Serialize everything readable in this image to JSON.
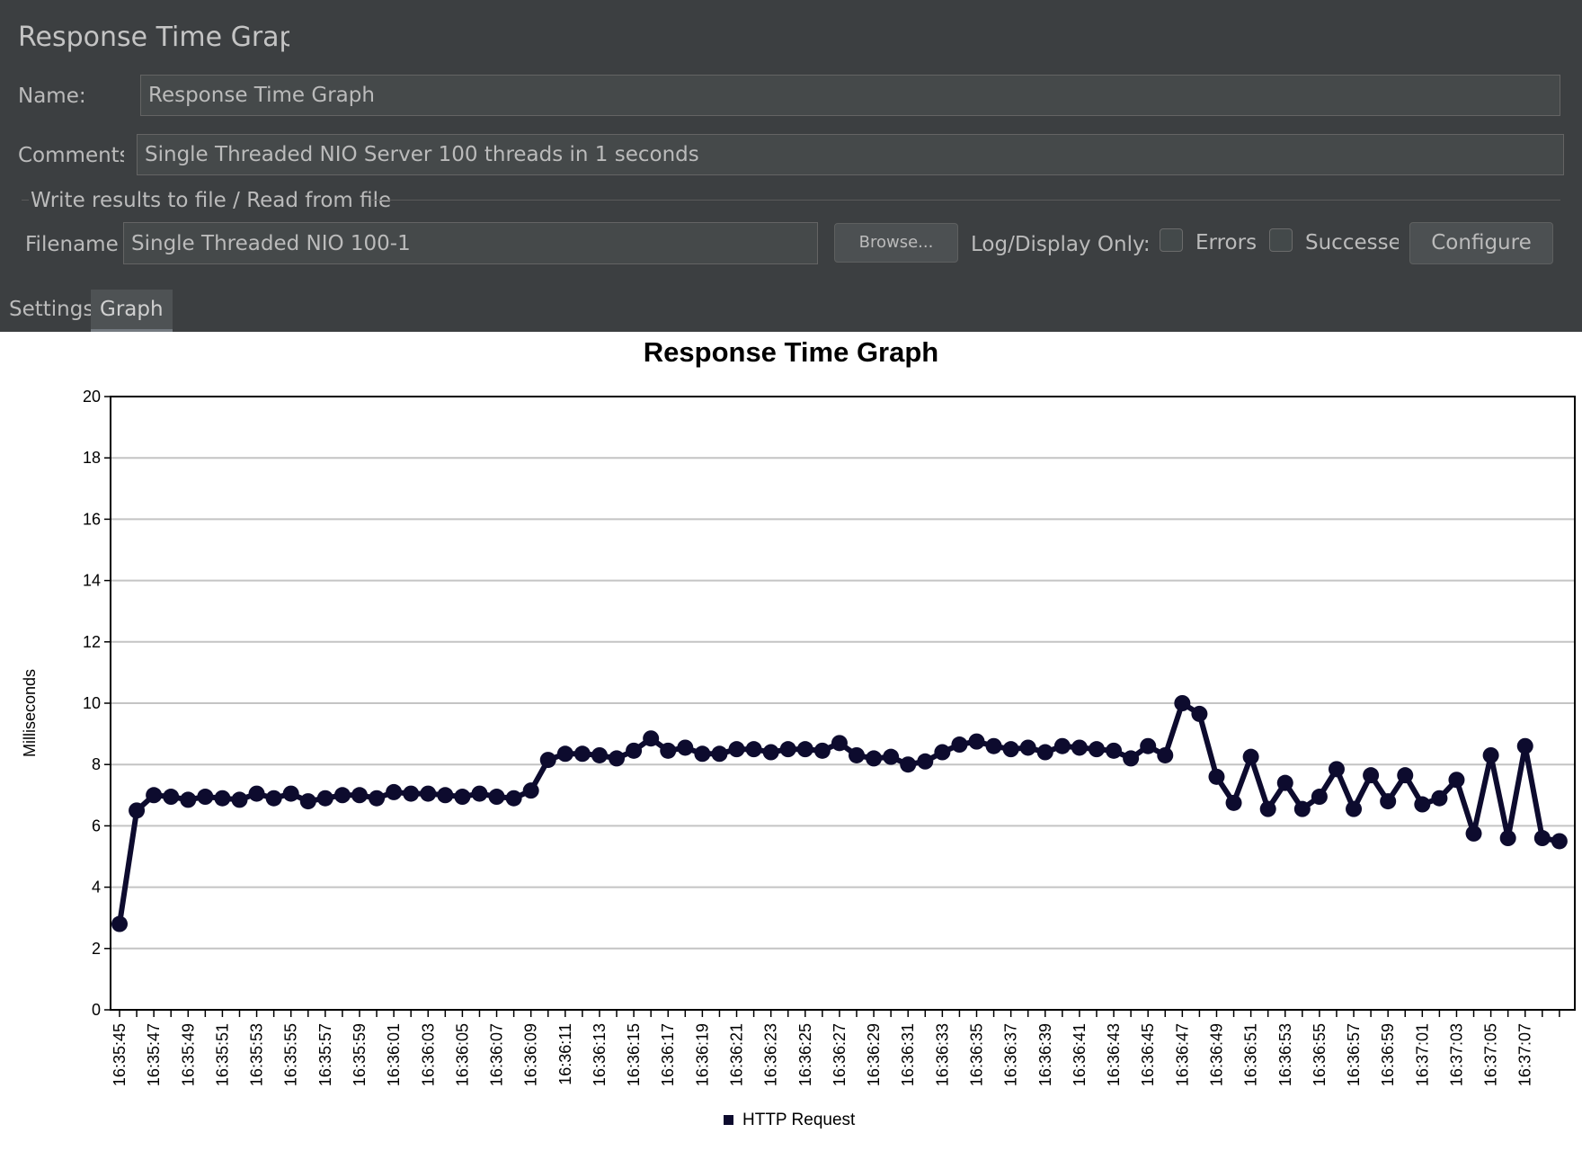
{
  "panel": {
    "title": "Response Time Graph",
    "name_label": "Name:",
    "name_value": "Response Time Graph",
    "comments_label": "Comments:",
    "comments_value": "Single Threaded NIO Server 100 threads in 1 seconds",
    "file_section_label": "Write results to file / Read from file",
    "filename_label": "Filename",
    "filename_value": "Single Threaded NIO 100-1",
    "browse_label": "Browse...",
    "log_display_label": "Log/Display Only:",
    "errors_label": "Errors",
    "successes_label": "Successes",
    "configure_label": "Configure",
    "errors_checked": false,
    "successes_checked": false
  },
  "tabs": [
    {
      "label": "Settings",
      "active": false
    },
    {
      "label": "Graph",
      "active": true
    }
  ],
  "chart_data": {
    "type": "line",
    "title": "Response Time Graph",
    "xlabel": "",
    "ylabel": "Milliseconds",
    "ylim": [
      0,
      20
    ],
    "yticks": [
      0,
      2,
      4,
      6,
      8,
      10,
      12,
      14,
      16,
      18,
      20
    ],
    "grid": true,
    "legend_position": "bottom",
    "x": [
      "16:35:45",
      "16:35:46",
      "16:35:47",
      "16:35:48",
      "16:35:49",
      "16:35:50",
      "16:35:51",
      "16:35:52",
      "16:35:53",
      "16:35:54",
      "16:35:55",
      "16:35:56",
      "16:35:57",
      "16:35:58",
      "16:35:59",
      "16:36:00",
      "16:36:01",
      "16:36:02",
      "16:36:03",
      "16:36:04",
      "16:36:05",
      "16:36:06",
      "16:36:07",
      "16:36:08",
      "16:36:09",
      "16:36:10",
      "16:36:11",
      "16:36:12",
      "16:36:13",
      "16:36:14",
      "16:36:15",
      "16:36:16",
      "16:36:17",
      "16:36:18",
      "16:36:19",
      "16:36:20",
      "16:36:21",
      "16:36:22",
      "16:36:23",
      "16:36:24",
      "16:36:25",
      "16:36:26",
      "16:36:27",
      "16:36:28",
      "16:36:29",
      "16:36:30",
      "16:36:31",
      "16:36:32",
      "16:36:33",
      "16:36:34",
      "16:36:35",
      "16:36:36",
      "16:36:37",
      "16:36:38",
      "16:36:39",
      "16:36:40",
      "16:36:41",
      "16:36:42",
      "16:36:43",
      "16:36:44",
      "16:36:45",
      "16:36:46",
      "16:36:47",
      "16:36:48",
      "16:36:49",
      "16:36:50",
      "16:36:51",
      "16:36:52",
      "16:36:53",
      "16:36:54",
      "16:36:55",
      "16:36:56",
      "16:36:57",
      "16:36:58",
      "16:36:59",
      "16:37:00",
      "16:37:01",
      "16:37:02",
      "16:37:03",
      "16:37:04",
      "16:37:05",
      "16:37:06",
      "16:37:07",
      "16:37:08",
      "16:37:09"
    ],
    "xtick_labels": [
      "16:35:45",
      "16:35:47",
      "16:35:49",
      "16:35:51",
      "16:35:53",
      "16:35:55",
      "16:35:57",
      "16:35:59",
      "16:36:01",
      "16:36:03",
      "16:36:05",
      "16:36:07",
      "16:36:09",
      "16:36:11",
      "16:36:13",
      "16:36:15",
      "16:36:17",
      "16:36:19",
      "16:36:21",
      "16:36:23",
      "16:36:25",
      "16:36:27",
      "16:36:29",
      "16:36:31",
      "16:36:33",
      "16:36:35",
      "16:36:37",
      "16:36:39",
      "16:36:41",
      "16:36:43",
      "16:36:45",
      "16:36:47",
      "16:36:49",
      "16:36:51",
      "16:36:53",
      "16:36:55",
      "16:36:57",
      "16:36:59",
      "16:37:01",
      "16:37:03",
      "16:37:05",
      "16:37:07"
    ],
    "series": [
      {
        "name": "HTTP Request",
        "color": "#0d0b2e",
        "values": [
          2.8,
          6.5,
          7.0,
          6.95,
          6.85,
          6.95,
          6.9,
          6.85,
          7.05,
          6.9,
          7.05,
          6.8,
          6.9,
          7.0,
          7.0,
          6.9,
          7.1,
          7.05,
          7.05,
          7.0,
          6.95,
          7.05,
          6.95,
          6.9,
          7.15,
          8.15,
          8.35,
          8.35,
          8.3,
          8.2,
          8.45,
          8.85,
          8.45,
          8.55,
          8.35,
          8.35,
          8.5,
          8.5,
          8.4,
          8.5,
          8.5,
          8.45,
          8.7,
          8.3,
          8.2,
          8.25,
          8.0,
          8.1,
          8.4,
          8.65,
          8.75,
          8.6,
          8.5,
          8.55,
          8.4,
          8.6,
          8.55,
          8.5,
          8.45,
          8.2,
          8.6,
          8.3,
          10.0,
          9.65,
          7.6,
          6.75,
          8.25,
          6.55,
          7.4,
          6.55,
          6.95,
          7.85,
          6.55,
          7.65,
          6.8,
          7.65,
          6.7,
          6.9,
          7.5,
          5.75,
          8.3,
          5.6,
          8.6,
          5.6,
          5.5
        ]
      }
    ]
  }
}
